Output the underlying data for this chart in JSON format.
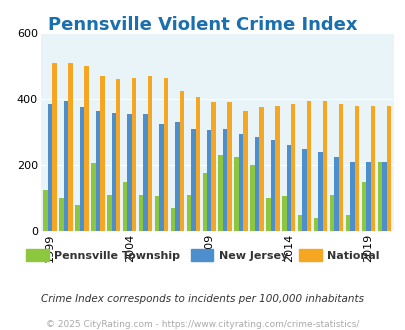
{
  "title": "Pennsville Violent Crime Index",
  "title_color": "#1a6faf",
  "years": [
    1999,
    2000,
    2001,
    2002,
    2003,
    2004,
    2005,
    2006,
    2007,
    2008,
    2009,
    2010,
    2011,
    2012,
    2013,
    2014,
    2015,
    2016,
    2017,
    2018,
    2019,
    2020
  ],
  "pennsville": [
    125,
    100,
    80,
    205,
    110,
    150,
    110,
    105,
    70,
    110,
    175,
    230,
    225,
    200,
    100,
    105,
    50,
    40,
    110,
    50,
    150,
    210
  ],
  "new_jersey": [
    385,
    395,
    375,
    365,
    358,
    355,
    355,
    325,
    330,
    310,
    305,
    310,
    295,
    285,
    275,
    260,
    250,
    240,
    225,
    210,
    208,
    208
  ],
  "national": [
    510,
    510,
    500,
    470,
    460,
    465,
    470,
    465,
    425,
    405,
    390,
    390,
    365,
    375,
    380,
    385,
    395,
    395,
    385,
    380,
    380,
    380
  ],
  "pennsville_color": "#8dc63f",
  "new_jersey_color": "#4d8fcc",
  "national_color": "#f5a623",
  "plot_bg_color": "#e8f4f8",
  "ylim": [
    0,
    600
  ],
  "yticks": [
    0,
    200,
    400,
    600
  ],
  "xtick_years": [
    1999,
    2004,
    2009,
    2014,
    2019
  ],
  "subtitle": "Crime Index corresponds to incidents per 100,000 inhabitants",
  "footer": "© 2025 CityRating.com - https://www.cityrating.com/crime-statistics/",
  "legend_labels": [
    "Pennsville Township",
    "New Jersey",
    "National"
  ],
  "bar_width": 0.28
}
